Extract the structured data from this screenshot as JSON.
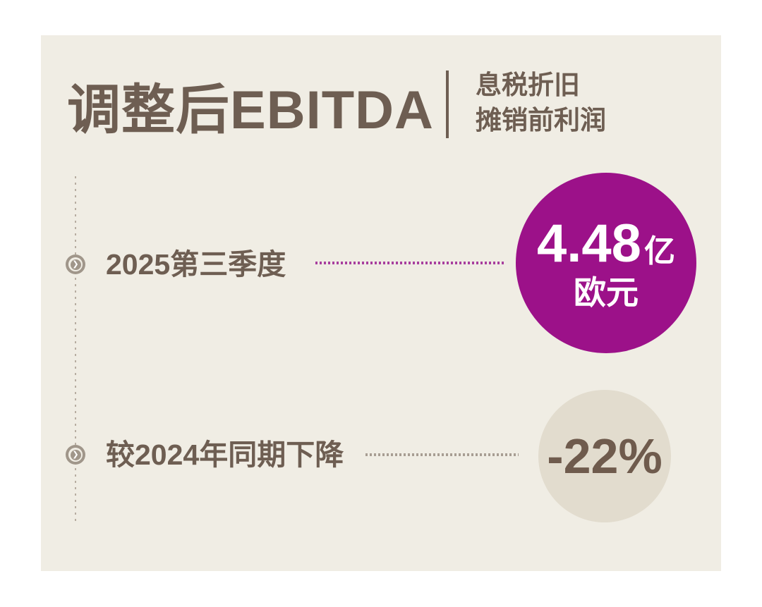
{
  "colors": {
    "page_background": "#FFFFFF",
    "card_background": "#F0EDE4",
    "text_brown": "#6E5E52",
    "accent_purple": "#9C1189",
    "circle_beige": "#E2DCCE",
    "leader_dots_purple": "#A83F9E",
    "leader_dots_gray": "#A79D92",
    "timeline_dots": "#B7ADA1",
    "bullet_taupe": "#A0968A"
  },
  "header": {
    "title": "调整后EBITDA",
    "subtitle_line1": "息税折旧",
    "subtitle_line2": "摊销前利润"
  },
  "rows": [
    {
      "label": "2025第三季度",
      "value_main": "4.48",
      "value_unit": "亿",
      "value_sub": "欧元"
    },
    {
      "label": "较2024年同期下降",
      "value": "-22%"
    }
  ],
  "icons": {
    "chevron_glyph": "❯"
  }
}
